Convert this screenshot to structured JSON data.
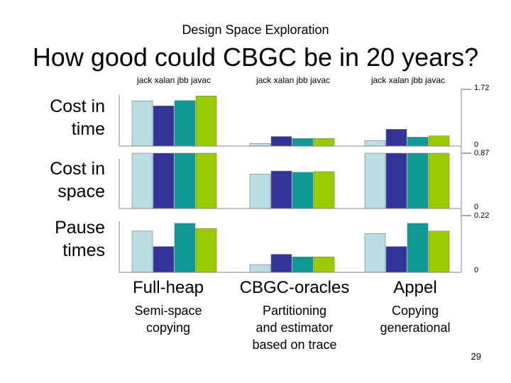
{
  "header": {
    "supertitle": "Design Space Exploration",
    "title": "How good could CBGC be in 20 years?"
  },
  "footer": {
    "page_number": "29"
  },
  "colors": {
    "jack": "#b9dde3",
    "xalan": "#333399",
    "jbb": "#0e9996",
    "javac": "#99cc00",
    "axis": "#888888"
  },
  "chart_data": {
    "type": "bar",
    "benchmarks": [
      "jack",
      "xalan",
      "jbb",
      "javac"
    ],
    "benchmark_header": "jack xalan jbb javac",
    "groups": [
      {
        "name": "Full-heap",
        "description_lines": [
          "Semi-space",
          "copying"
        ]
      },
      {
        "name": "CBGC-oracles",
        "description_lines": [
          "Partitioning",
          "and estimator",
          "based on trace"
        ]
      },
      {
        "name": "Appel",
        "description_lines": [
          "Copying",
          "generational"
        ]
      }
    ],
    "panels": [
      {
        "label_lines": [
          "Cost in",
          "time"
        ],
        "ymax_label": "1.72",
        "ymin_label": "0",
        "ylim": [
          0,
          1.72
        ],
        "values": [
          [
            1.37,
            1.22,
            1.38,
            1.52
          ],
          [
            0.08,
            0.29,
            0.23,
            0.23
          ],
          [
            0.17,
            0.51,
            0.27,
            0.31
          ]
        ]
      },
      {
        "label_lines": [
          "Cost in",
          "space"
        ],
        "ymax_label": "0.87",
        "ymin_label": "0",
        "ylim": [
          0,
          0.87
        ],
        "values": [
          [
            0.87,
            0.87,
            0.87,
            0.87
          ],
          [
            0.54,
            0.59,
            0.57,
            0.58
          ],
          [
            0.87,
            0.87,
            0.87,
            0.87
          ]
        ]
      },
      {
        "label_lines": [
          "Pause",
          "times"
        ],
        "ymax_label": "0.22",
        "ymin_label": "0",
        "ylim": [
          0,
          0.22
        ],
        "values": [
          [
            0.16,
            0.1,
            0.19,
            0.17
          ],
          [
            0.03,
            0.07,
            0.06,
            0.06
          ],
          [
            0.15,
            0.1,
            0.19,
            0.16
          ]
        ]
      }
    ]
  }
}
